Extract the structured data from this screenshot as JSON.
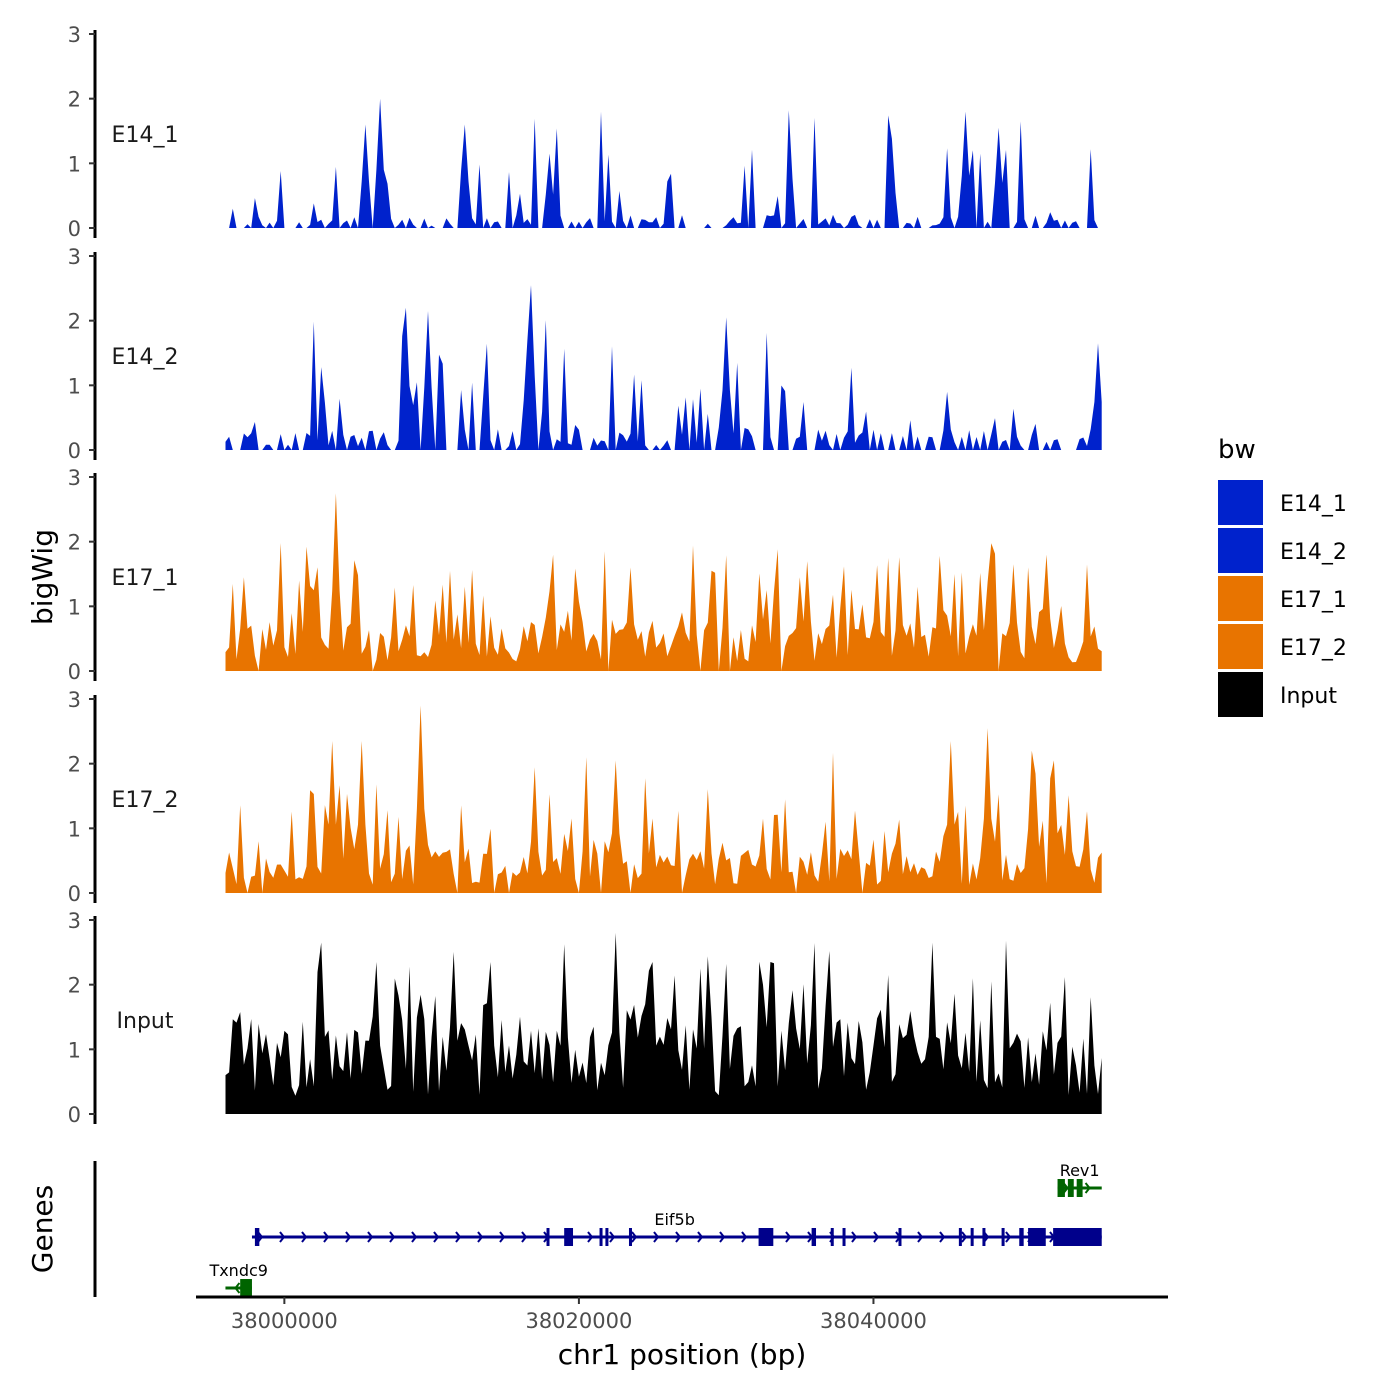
{
  "chart_data": {
    "type": "area",
    "title": "",
    "xlabel": "chr1 position (bp)",
    "ylabel": "bigWig",
    "genes_label": "Genes",
    "xlim": [
      37994000,
      38060000
    ],
    "ylim": [
      0,
      3
    ],
    "yticks": [
      0,
      1,
      2,
      3
    ],
    "xticks": [
      38000000,
      38020000,
      38040000
    ],
    "x_start": 37996000,
    "x_end": 38055500,
    "bin_size": 250,
    "legend": {
      "title": "bw",
      "entries": [
        {
          "label": "E14_1",
          "color": "#0022CC"
        },
        {
          "label": "E14_2",
          "color": "#0022CC"
        },
        {
          "label": "E17_1",
          "color": "#E87400"
        },
        {
          "label": "E17_2",
          "color": "#E87400"
        },
        {
          "label": "Input",
          "color": "#000000"
        }
      ]
    },
    "series": [
      {
        "name": "E14_1",
        "color": "#0022CC",
        "seed": 11,
        "base": 0.12,
        "peak_prob": 0.3,
        "peak_scale": 1.05,
        "sparse": 0.45,
        "peaks": [
          [
            38005500,
            1.6
          ],
          [
            38006600,
            2.0
          ],
          [
            38012200,
            1.6
          ],
          [
            38046200,
            1.8
          ],
          [
            38048500,
            1.55
          ],
          [
            38017900,
            1.15
          ]
        ]
      },
      {
        "name": "E14_2",
        "color": "#0022CC",
        "seed": 23,
        "base": 0.2,
        "peak_prob": 0.3,
        "peak_scale": 1.1,
        "sparse": 0.4,
        "peaks": [
          [
            38016800,
            2.55
          ],
          [
            38016600,
            1.7
          ],
          [
            38008200,
            2.2
          ],
          [
            38009800,
            2.15
          ],
          [
            38029900,
            2.05
          ],
          [
            38055300,
            1.65
          ]
        ]
      },
      {
        "name": "E17_1",
        "color": "#E87400",
        "seed": 37,
        "base": 0.45,
        "peak_prob": 0.35,
        "peak_scale": 0.95,
        "sparse": 0.04,
        "peaks": [
          [
            38003600,
            2.75
          ],
          [
            37997200,
            1.45
          ],
          [
            38023600,
            1.6
          ],
          [
            38029000,
            1.55
          ],
          [
            38035500,
            1.7
          ],
          [
            38051700,
            1.8
          ],
          [
            38049400,
            1.65
          ]
        ]
      },
      {
        "name": "E17_2",
        "color": "#E87400",
        "seed": 53,
        "base": 0.4,
        "peak_prob": 0.35,
        "peak_scale": 1.0,
        "sparse": 0.05,
        "peaks": [
          [
            38009200,
            2.9
          ],
          [
            38003200,
            2.35
          ],
          [
            38005200,
            2.35
          ],
          [
            38045200,
            2.35
          ],
          [
            38047800,
            2.55
          ],
          [
            38050800,
            2.2
          ],
          [
            38052200,
            2.05
          ],
          [
            38022600,
            2.05
          ]
        ]
      },
      {
        "name": "Input",
        "color": "#000000",
        "seed": 71,
        "base": 0.9,
        "peak_prob": 0.42,
        "peak_scale": 1.0,
        "sparse": 0.0,
        "peaks": [
          [
            38002500,
            2.65
          ],
          [
            38022600,
            2.8
          ],
          [
            38044100,
            2.65
          ],
          [
            38014000,
            2.35
          ],
          [
            38006200,
            2.35
          ],
          [
            38025000,
            2.35
          ],
          [
            38028200,
            2.25
          ],
          [
            38033100,
            2.35
          ]
        ]
      }
    ],
    "genes": [
      {
        "name": "Rev1",
        "start": 38052500,
        "end": 38055500,
        "strand": "+",
        "color": "#006400",
        "row": 0,
        "exons": [
          [
            38052500,
            38053000
          ],
          [
            38053200,
            38053600
          ],
          [
            38053800,
            38054200
          ]
        ]
      },
      {
        "name": "Eif5b",
        "start": 37997800,
        "end": 38055500,
        "strand": "+",
        "color": "#00008B",
        "row": 1,
        "exons": [
          [
            37998000,
            37998300
          ],
          [
            38017800,
            38018000
          ],
          [
            38019000,
            38019600
          ],
          [
            38021400,
            38021500
          ],
          [
            38021800,
            38022000
          ],
          [
            38023400,
            38023600
          ],
          [
            38032200,
            38033200
          ],
          [
            38035800,
            38036100
          ],
          [
            38037100,
            38037300
          ],
          [
            38037900,
            38038000
          ],
          [
            38041700,
            38041900
          ],
          [
            38045800,
            38046000
          ],
          [
            38046600,
            38046800
          ],
          [
            38047400,
            38047500
          ],
          [
            38048700,
            38048900
          ],
          [
            38049900,
            38050200
          ],
          [
            38050500,
            38051700
          ],
          [
            38052200,
            38055500
          ]
        ]
      },
      {
        "name": "Txndc9",
        "start": 37996000,
        "end": 37997800,
        "strand": "-",
        "color": "#006400",
        "row": 2,
        "exons": [
          [
            37997000,
            37997800
          ]
        ]
      }
    ]
  }
}
